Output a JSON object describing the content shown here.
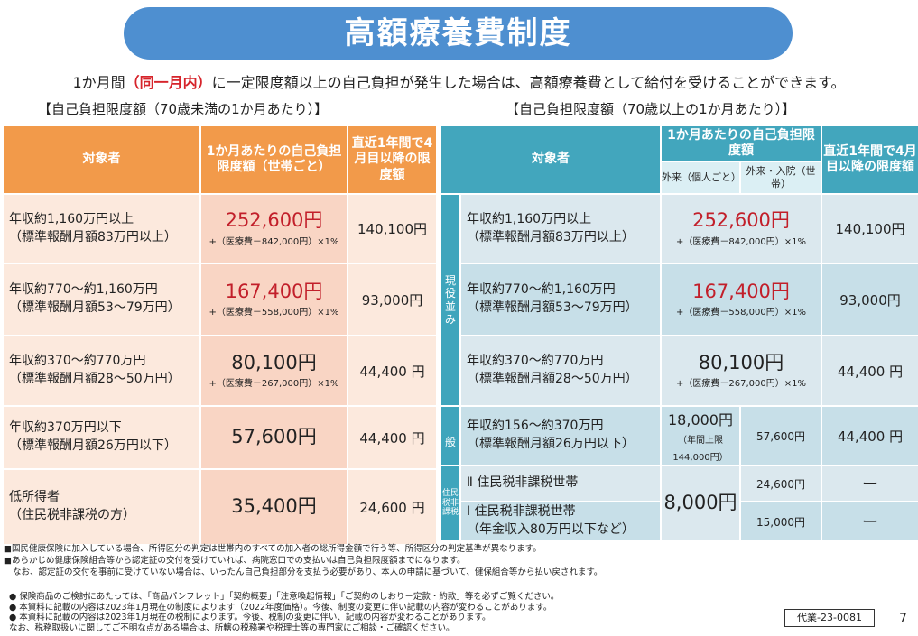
{
  "title": "高額療養費制度",
  "intro": {
    "before": "1か月間",
    "highlight": "（同一月内）",
    "after": "に一定限度額以上の自己負担が発生した場合は、高額療養費として給付を受けることができます。"
  },
  "left": {
    "section_title": "【自己負担限度額（70歳未満の1か月あたり）】",
    "headers": {
      "col1": "対象者",
      "col2": "1か月あたりの自己負担限度額（世帯ごと）",
      "col3": "直近1年間で4月目以降の限度額"
    },
    "rows": [
      {
        "label1": "年収約1,160万円以上",
        "label2": "（標準報酬月額83万円以上）",
        "amount": "252,600円",
        "formula": "+（医療費－842,000円）×1%",
        "after4": "140,100円"
      },
      {
        "label1": "年収約770～約1,160万円",
        "label2": "（標準報酬月額53～79万円）",
        "amount": "167,400円",
        "formula": "+（医療費－558,000円）×1%",
        "after4": "93,000円"
      },
      {
        "label1": "年収約370～約770万円",
        "label2": "（標準報酬月額28～50万円）",
        "amount": "80,100円",
        "formula": "+（医療費－267,000円）×1%",
        "after4": "44,400 円"
      },
      {
        "label1": "年収約370万円以下",
        "label2": "（標準報酬月額26万円以下）",
        "amount": "57,600円",
        "formula": "",
        "after4": "44,400 円"
      },
      {
        "label1": "低所得者",
        "label2": "（住民税非課税の方）",
        "amount": "35,400円",
        "formula": "",
        "after4": "24,600 円"
      }
    ]
  },
  "right": {
    "section_title": "【自己負担限度額（70歳以上の1か月あたり）】",
    "headers": {
      "col1": "対象者",
      "col2": "1か月あたりの自己負担限度額",
      "sub1": "外来（個人ごと）",
      "sub2": "外来・入院（世帯）",
      "col3": "直近1年間で4月目以降の限度額"
    },
    "bands": {
      "genekinami": "現役並み",
      "ippan": "一般",
      "jumin": "住民税非課税"
    },
    "rows": [
      {
        "label1": "年収約1,160万円以上",
        "label2": "（標準報酬月額83万円以上）",
        "amount": "252,600円",
        "formula": "+（医療費－842,000円）×1%",
        "after4": "140,100円"
      },
      {
        "label1": "年収約770～約1,160万円",
        "label2": "（標準報酬月額53～79万円）",
        "amount": "167,400円",
        "formula": "+（医療費－558,000円）×1%",
        "after4": "93,000円"
      },
      {
        "label1": "年収約370～約770万円",
        "label2": "（標準報酬月額28～50万円）",
        "amount": "80,100円",
        "formula": "+（医療費－267,000円）×1%",
        "after4": "44,400 円"
      },
      {
        "label1": "年収約156～約370万円",
        "label2": "（標準報酬月額26万円以下）",
        "gairai": "18,000円",
        "gairai_note": "（年間上限144,000円）",
        "setai": "57,600円",
        "after4": "44,400 円"
      },
      {
        "label1": "Ⅱ 住民税非課税世帯",
        "setai": "24,600円",
        "after4": "ー"
      },
      {
        "label1": "Ⅰ 住民税非課税世帯",
        "label2": "（年金収入80万円以下など）",
        "setai": "15,000円",
        "after4": "ー"
      },
      {
        "gairai_shared": "8,000円"
      }
    ]
  },
  "notes1": [
    "■国民健康保険に加入している場合、所得区分の判定は世帯内のすべての加入者の総所得金額で行う等、所得区分の判定基準が異なります。",
    "■あらかじめ健康保険組合等から認定証の交付を受けていれば、病院窓口での支払いは自己負担限度額までになります。",
    "なお、認定証の交付を事前に受けていない場合は、いったん自己負担部分を支払う必要があり、本人の申請に基づいて、健保組合等から払い戻されます。"
  ],
  "notes2": [
    "● 保険商品のご検討にあたっては、「商品パンフレット」「契約概要」「注意喚起情報」「ご契約のしおり－定款・約款」等を必ずご覧ください。",
    "● 本資料に記載の内容は2023年1月現在の制度によります（2022年度価格）。今後、制度の変更に伴い記載の内容が変わることがあります。",
    "● 本資料に記載の内容は2023年1月現在の税制によります。今後、税制の変更に伴い、記載の内容が変わることがあります。",
    "なお、税務取扱いに関してご不明な点がある場合は、所轄の税務署や税理士等の専門家にご相談・ご確認ください。"
  ],
  "code": "代業-23-0081",
  "page": "7"
}
